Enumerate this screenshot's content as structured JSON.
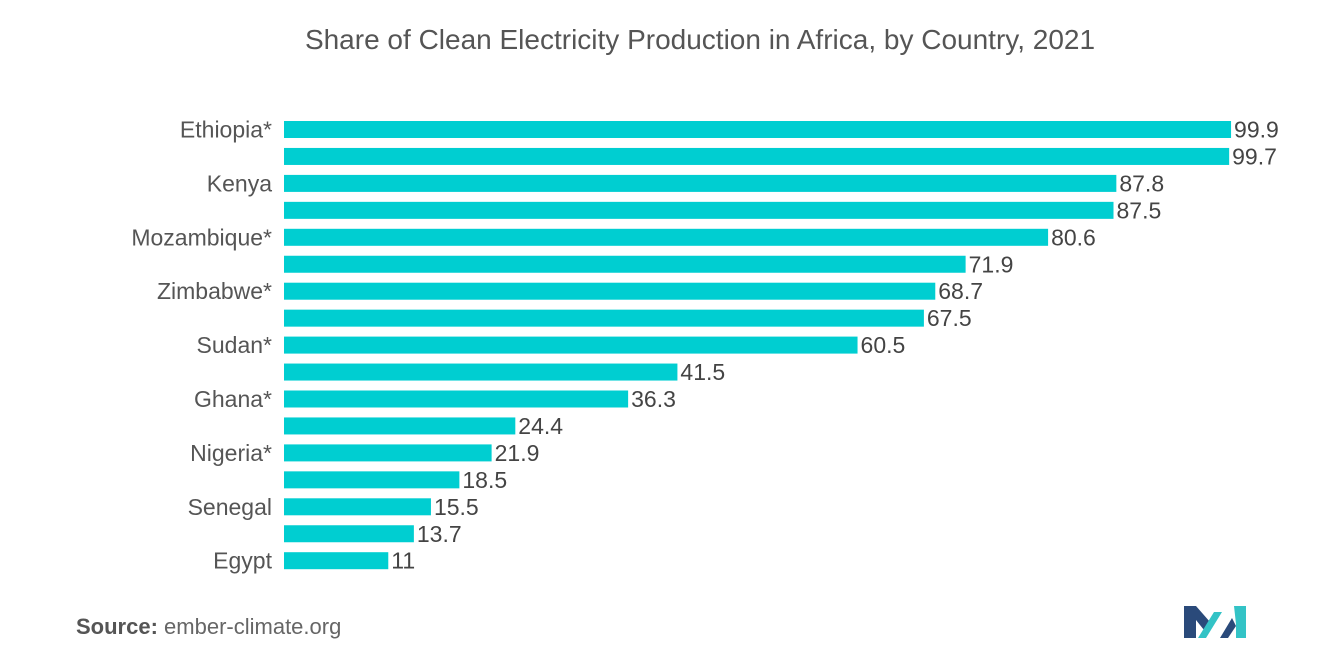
{
  "chart_data": {
    "type": "bar",
    "orientation": "horizontal",
    "title": "Share of Clean Electricity Production in Africa, by Country, 2021",
    "categories": [
      "Ethiopia*",
      "",
      "Kenya",
      "",
      "Mozambique*",
      "",
      "Zimbabwe*",
      "",
      "Sudan*",
      "",
      "Ghana*",
      "",
      "Nigeria*",
      "",
      "Senegal",
      "",
      "Egypt"
    ],
    "values": [
      99.9,
      99.7,
      87.8,
      87.5,
      80.6,
      71.9,
      68.7,
      67.5,
      60.5,
      41.5,
      36.3,
      24.4,
      21.9,
      18.5,
      15.5,
      13.7,
      11
    ],
    "value_labels": [
      "99.9",
      "99.7",
      "87.8",
      "87.5",
      "80.6",
      "71.9",
      "68.7",
      "67.5",
      "60.5",
      "41.5",
      "36.3",
      "24.4",
      "21.9",
      "18.5",
      "15.5",
      "13.7",
      "11"
    ],
    "xlim": [
      0,
      100
    ],
    "grid": false,
    "bar_color": "#00CED1",
    "xlabel": "",
    "ylabel": ""
  },
  "source": {
    "label": "Source:",
    "text": "ember-climate.org"
  },
  "logo": {
    "icon": "mordor-intelligence-logo-icon",
    "colors": [
      "#2a4a7a",
      "#33c3c6"
    ]
  }
}
